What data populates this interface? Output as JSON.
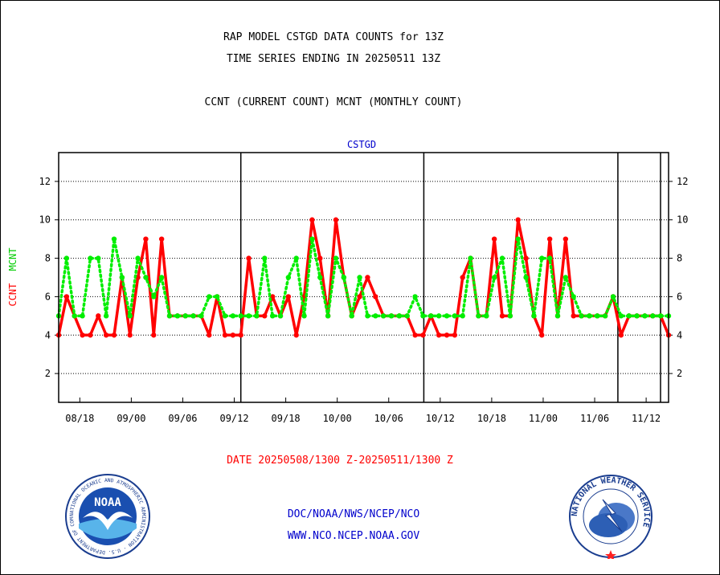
{
  "header": {
    "title": "RAP MODEL CSTGD DATA COUNTS for 13Z",
    "subtitle": "TIME SERIES ENDING IN 20250511 13Z",
    "legend_caption": "CCNT (CURRENT COUNT) MCNT (MONTHLY COUNT)"
  },
  "footer": {
    "date_range": "DATE 20250508/1300 Z-20250511/1300 Z",
    "link1": "DOC/NOAA/NWS/NCEP/NCO",
    "link2": "WWW.NCO.NCEP.NOAA.GOV"
  },
  "logos": {
    "left": "NOAA",
    "left_ring": "NATIONAL OCEANIC AND ATMOSPHERIC ADMINISTRATION · U.S. DEPARTMENT OF COMMERCE ·",
    "right_ring": "NATIONAL WEATHER SERVICE"
  },
  "colors": {
    "ccnt": "#ff0000",
    "mcnt": "#00ee00",
    "station": "#0000cc",
    "grid": "#000000"
  },
  "chart_data": {
    "type": "line",
    "title": "CSTGD",
    "ylabel_parts": [
      "CCNT",
      "MCNT"
    ],
    "ylim": [
      0.5,
      13.5
    ],
    "yticks": [
      2,
      4,
      6,
      8,
      10,
      12
    ],
    "grid": true,
    "x_tick_labels": [
      "08/18",
      "09/00",
      "09/06",
      "09/12",
      "09/18",
      "10/00",
      "10/06",
      "10/12",
      "10/18",
      "11/00",
      "11/06",
      "11/12"
    ],
    "day_boundaries": [
      "09/12",
      "10/12",
      "11/12"
    ],
    "series": [
      {
        "name": "CCNT",
        "values": [
          4,
          6,
          5,
          4,
          4,
          5,
          4,
          4,
          7,
          4,
          7,
          9,
          4,
          9,
          5,
          5,
          5,
          5,
          5,
          4,
          6,
          4,
          4,
          4,
          8,
          5,
          5,
          6,
          5,
          6,
          4,
          6,
          10,
          8,
          5,
          10,
          7,
          5,
          6,
          7,
          6,
          5,
          5,
          5,
          5,
          4,
          4,
          5,
          4,
          4,
          4,
          7,
          8,
          5,
          5,
          9,
          5,
          5,
          10,
          8,
          5,
          4,
          9,
          5,
          9,
          5,
          5,
          5,
          5,
          5,
          6,
          4,
          5,
          5,
          5,
          5,
          5,
          4
        ]
      },
      {
        "name": "MCNT",
        "values": [
          5,
          8,
          5,
          5,
          8,
          8,
          5,
          9,
          7,
          5,
          8,
          7,
          6,
          7,
          5,
          5,
          5,
          5,
          5,
          6,
          6,
          5,
          5,
          5,
          5,
          5,
          8,
          5,
          5,
          7,
          8,
          5,
          9,
          7,
          5,
          8,
          7,
          5,
          7,
          5,
          5,
          5,
          5,
          5,
          5,
          6,
          5,
          5,
          5,
          5,
          5,
          5,
          8,
          5,
          5,
          7,
          8,
          5,
          9,
          7,
          5,
          8,
          8,
          5,
          7,
          6,
          5,
          5,
          5,
          5,
          6,
          5,
          5,
          5,
          5,
          5,
          5,
          5
        ]
      }
    ]
  }
}
